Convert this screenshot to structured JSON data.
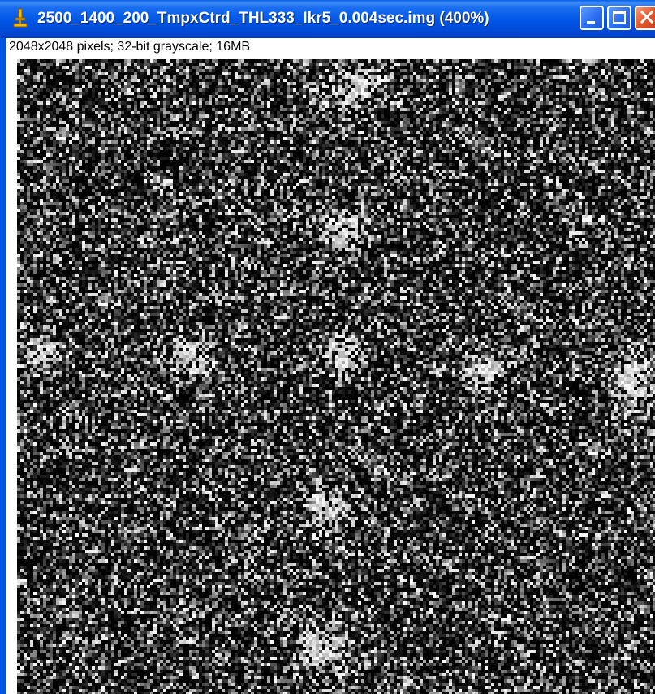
{
  "window": {
    "title": "2500_1400_200_TmpxCtrd_THL333_Ikr5_0.004sec.img (400%)",
    "app_icon": "imagej-microscope-icon",
    "buttons": [
      {
        "name": "minimize-button",
        "icon": "minimize-icon"
      },
      {
        "name": "maximize-button",
        "icon": "maximize-icon"
      },
      {
        "name": "close-button",
        "icon": "close-icon"
      }
    ]
  },
  "image_info": "2048x2048 pixels; 32-bit grayscale; 16MB",
  "image": {
    "kind": "noisy grayscale diffraction pattern",
    "zoom": "400%",
    "colors": {
      "background": "#000000",
      "foreground": "#ffffff"
    }
  }
}
